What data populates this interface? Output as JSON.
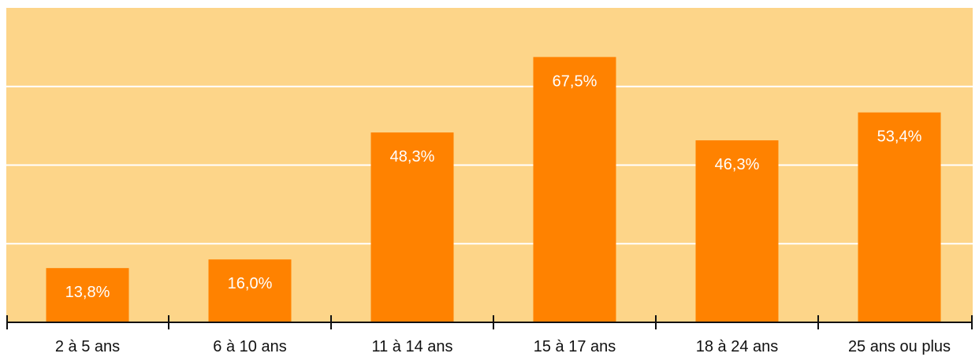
{
  "chart_data": {
    "type": "bar",
    "categories": [
      "2 à 5 ans",
      "6 à 10 ans",
      "11 à 14 ans",
      "15 à 17 ans",
      "18 à 24 ans",
      "25 ans ou plus"
    ],
    "values": [
      13.8,
      16.0,
      48.3,
      67.5,
      46.3,
      53.4
    ],
    "value_labels": [
      "13,8%",
      "16,0%",
      "48,3%",
      "67,5%",
      "46,3%",
      "53,4%"
    ],
    "ylim": [
      0,
      80
    ],
    "grid": true,
    "title": "",
    "xlabel": "",
    "ylabel": ""
  },
  "colors": {
    "plot_background": "#FDD589",
    "bar": "#FF8200",
    "gridline": "#FFFFFF",
    "axis": "#111111",
    "bar_label": "#FFFFFF",
    "tick_label": "#111111"
  }
}
